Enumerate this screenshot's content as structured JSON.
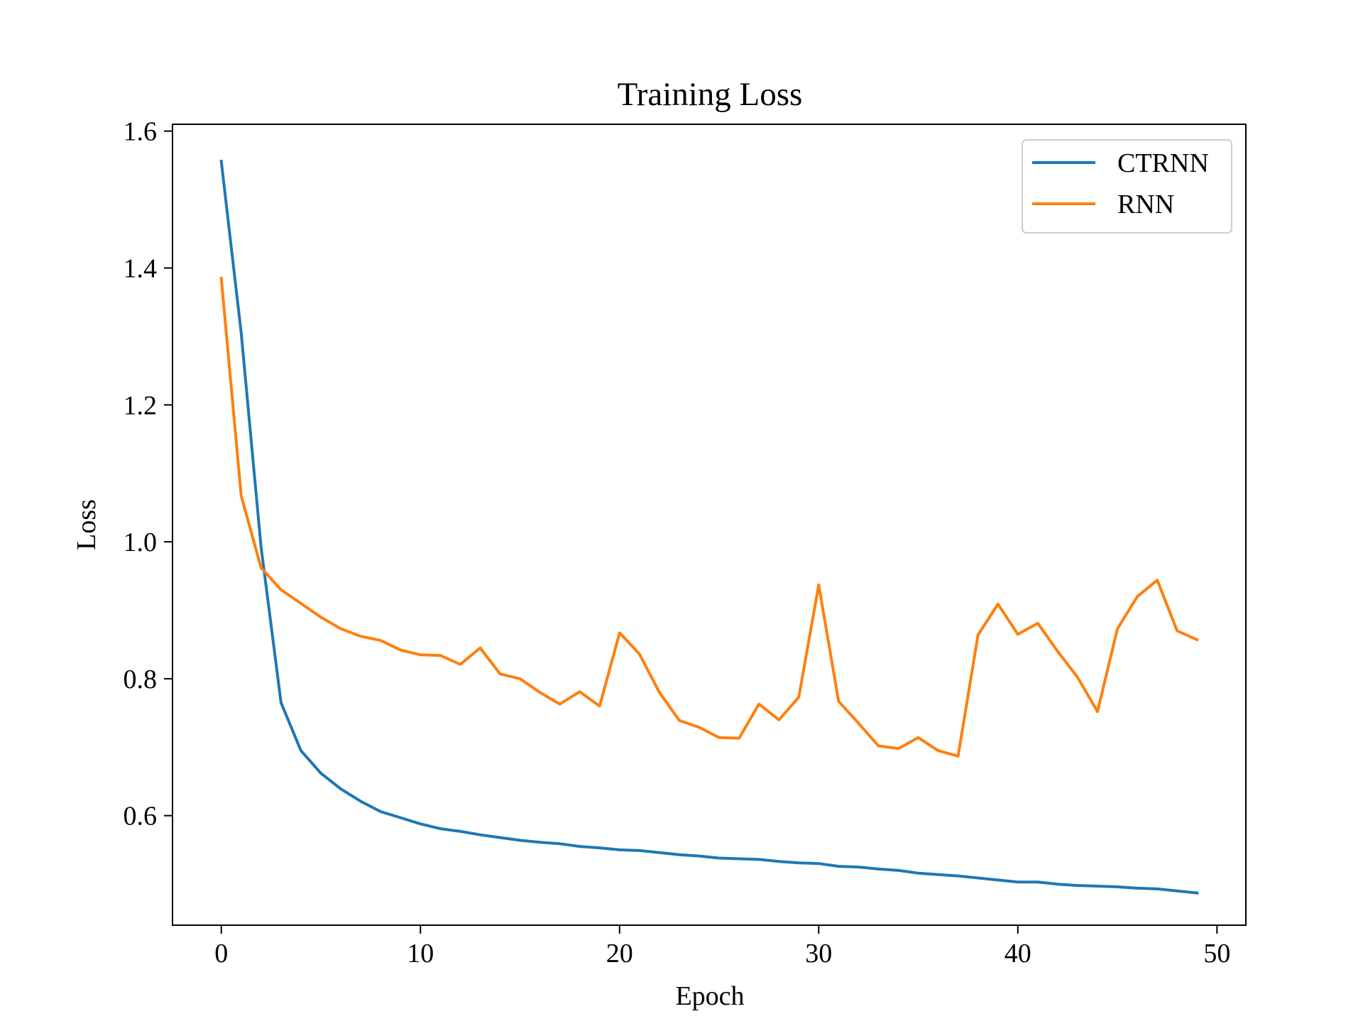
{
  "chart_data": {
    "type": "line",
    "title": "Training Loss",
    "xlabel": "Epoch",
    "ylabel": "Loss",
    "xlim": [
      -2.45,
      51.45
    ],
    "ylim": [
      0.44,
      1.61
    ],
    "xticks": [
      0,
      10,
      20,
      30,
      40,
      50
    ],
    "yticks": [
      0.6,
      0.8,
      1.0,
      1.2,
      1.4,
      1.6
    ],
    "xtick_labels": [
      "0",
      "10",
      "20",
      "30",
      "40",
      "50"
    ],
    "ytick_labels": [
      "0.6",
      "0.8",
      "1.0",
      "1.2",
      "1.4",
      "1.6"
    ],
    "grid": false,
    "legend": {
      "position": "top-right"
    },
    "x": [
      0,
      1,
      2,
      3,
      4,
      5,
      6,
      7,
      8,
      9,
      10,
      11,
      12,
      13,
      14,
      15,
      16,
      17,
      18,
      19,
      20,
      21,
      22,
      23,
      24,
      25,
      26,
      27,
      28,
      29,
      30,
      31,
      32,
      33,
      34,
      35,
      36,
      37,
      38,
      39,
      40,
      41,
      42,
      43,
      44,
      45,
      46,
      47,
      48,
      49
    ],
    "series": [
      {
        "name": "CTRNN",
        "color": "#1f77b4",
        "values": [
          1.556,
          1.305,
          0.992,
          0.765,
          0.695,
          0.662,
          0.639,
          0.621,
          0.606,
          0.597,
          0.588,
          0.581,
          0.577,
          0.572,
          0.568,
          0.564,
          0.561,
          0.559,
          0.555,
          0.553,
          0.55,
          0.549,
          0.546,
          0.543,
          0.541,
          0.538,
          0.537,
          0.536,
          0.533,
          0.531,
          0.53,
          0.526,
          0.525,
          0.522,
          0.52,
          0.516,
          0.514,
          0.512,
          0.509,
          0.506,
          0.503,
          0.503,
          0.5,
          0.498,
          0.497,
          0.496,
          0.494,
          0.493,
          0.49,
          0.487
        ]
      },
      {
        "name": "RNN",
        "color": "#ff7f0e",
        "values": [
          1.385,
          1.067,
          0.962,
          0.93,
          0.91,
          0.89,
          0.873,
          0.862,
          0.856,
          0.842,
          0.835,
          0.834,
          0.821,
          0.845,
          0.807,
          0.8,
          0.78,
          0.763,
          0.781,
          0.76,
          0.867,
          0.836,
          0.78,
          0.739,
          0.729,
          0.714,
          0.713,
          0.763,
          0.74,
          0.773,
          0.937,
          0.767,
          0.735,
          0.702,
          0.698,
          0.714,
          0.695,
          0.687,
          0.864,
          0.909,
          0.865,
          0.881,
          0.84,
          0.802,
          0.752,
          0.873,
          0.92,
          0.944,
          0.87,
          0.857
        ]
      }
    ]
  }
}
